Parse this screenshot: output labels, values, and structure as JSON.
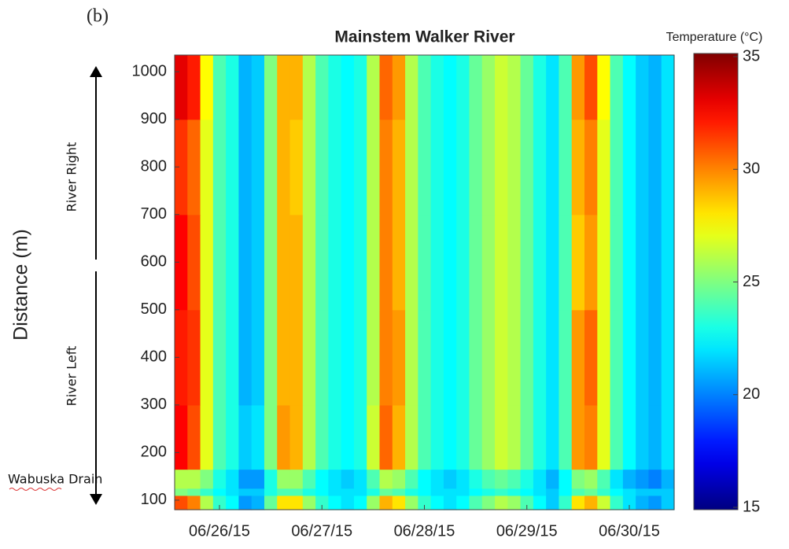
{
  "chart_data": {
    "type": "heatmap",
    "panel_label": "(b)",
    "title": "Mainstem Walker River",
    "ylabel": "Distance (m)",
    "colorbar_label": "Temperature (°C)",
    "colormap": "jet",
    "x": [
      null,
      null,
      null,
      "06/26/15",
      null,
      null,
      null,
      null,
      null,
      null,
      null,
      "06/27/15",
      null,
      null,
      null,
      null,
      null,
      null,
      null,
      "06/28/15",
      null,
      null,
      null,
      null,
      null,
      null,
      null,
      "06/29/15",
      null,
      null,
      null,
      null,
      null,
      null,
      null,
      "06/30/15",
      null,
      null,
      null
    ],
    "ybins": [
      80,
      110,
      125,
      165,
      300,
      500,
      700,
      900,
      1035
    ],
    "ylim": [
      80,
      1035
    ],
    "yticks": [
      100,
      200,
      300,
      400,
      500,
      600,
      700,
      800,
      900,
      1000
    ],
    "clim": [
      15,
      35
    ],
    "cticks": [
      15,
      20,
      25,
      30,
      35
    ],
    "annotations": [
      "River Right",
      "River Left",
      "Wabuska Drain"
    ],
    "values": [
      [
        31,
        30,
        26,
        23.5,
        22.5,
        20.5,
        21,
        24.5,
        28,
        28,
        25.5,
        23.5,
        22.5,
        22,
        22.5,
        25.5,
        29,
        28,
        25.5,
        23.5,
        22.5,
        22,
        22.5,
        24,
        25,
        26,
        25.5,
        24,
        22.5,
        21.5,
        23.5,
        28,
        29,
        26.5,
        23.5,
        22,
        21,
        20.5,
        21.5
      ],
      [
        25,
        24.5,
        23.5,
        22.5,
        22,
        21.5,
        21.5,
        23,
        24,
        24,
        23,
        22.5,
        22,
        22,
        22,
        23,
        24.5,
        24,
        23,
        22.5,
        22,
        22,
        22,
        22.5,
        23,
        23.5,
        23,
        22.5,
        22,
        21.5,
        22.5,
        24,
        24.5,
        23.5,
        22.5,
        22,
        21.5,
        21.5,
        21.5
      ],
      [
        26,
        26,
        25,
        23,
        22,
        20.5,
        20.5,
        23,
        25.5,
        25.5,
        24,
        22.5,
        22,
        21.5,
        22,
        24,
        26,
        25.5,
        24,
        22.5,
        22,
        21.5,
        22,
        23,
        24,
        24.5,
        24,
        23,
        22,
        21,
        22.5,
        25,
        25.5,
        24,
        22,
        21,
        20.5,
        20,
        21
      ],
      [
        32.5,
        31,
        27,
        24,
        23,
        21.5,
        22,
        25,
        29.5,
        29,
        26,
        24,
        23,
        22.5,
        23,
        26.5,
        30.5,
        29,
        26,
        24,
        23,
        22.5,
        23,
        24.5,
        25.5,
        26.5,
        26,
        24.5,
        23,
        22,
        24,
        29.5,
        30,
        27,
        24,
        22.5,
        21.5,
        21,
        22
      ],
      [
        32,
        31.5,
        27,
        24,
        23,
        21,
        21.5,
        25,
        29,
        29,
        26,
        24,
        23,
        22.5,
        23,
        26,
        30,
        29.5,
        26,
        24,
        23,
        22.5,
        23,
        24.5,
        25.5,
        26.5,
        26,
        24.5,
        23,
        22,
        24,
        29.5,
        30.5,
        27,
        24,
        22.5,
        21.5,
        21,
        22
      ],
      [
        32.5,
        31,
        27,
        24,
        23,
        21,
        21.5,
        25,
        29,
        29,
        26,
        24,
        23,
        22.5,
        23,
        26,
        30,
        29,
        26,
        24,
        23,
        22.5,
        23,
        24.5,
        25.5,
        26.5,
        26,
        24.5,
        23,
        22,
        24,
        28.5,
        29.5,
        27,
        24,
        22.5,
        21.5,
        21,
        22
      ],
      [
        31.5,
        30.5,
        27,
        24,
        23,
        21,
        21.5,
        25,
        29,
        28.5,
        26,
        24,
        23,
        22.5,
        23,
        26,
        30,
        29,
        26,
        24,
        23,
        22.5,
        23,
        24.5,
        25.5,
        26.5,
        26,
        24.5,
        23,
        22,
        24,
        29,
        30,
        27,
        24,
        22.5,
        21.5,
        21,
        22
      ],
      [
        33,
        32,
        27.5,
        24,
        23,
        21,
        21.5,
        25,
        29,
        29,
        26,
        24,
        23,
        22.5,
        23,
        26,
        30.5,
        29.5,
        26,
        24,
        23,
        22.5,
        23,
        24.5,
        25.5,
        26.5,
        26,
        24.5,
        23,
        22,
        24,
        29.5,
        31,
        27.5,
        24,
        22.5,
        21.5,
        21,
        22
      ]
    ]
  }
}
